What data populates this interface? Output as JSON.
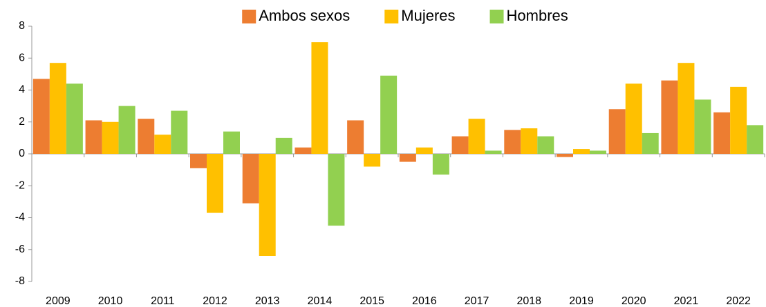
{
  "chart_data": {
    "type": "bar",
    "categories": [
      "2009",
      "2010",
      "2011",
      "2012",
      "2013",
      "2014",
      "2015",
      "2016",
      "2017",
      "2018",
      "2019",
      "2020",
      "2021",
      "2022"
    ],
    "series": [
      {
        "name": "Ambos sexos",
        "color": "#ED7D31",
        "values": [
          4.7,
          2.1,
          2.2,
          -0.9,
          -3.1,
          0.4,
          2.1,
          -0.5,
          1.1,
          1.5,
          -0.2,
          2.8,
          4.6,
          2.6
        ]
      },
      {
        "name": "Mujeres",
        "color": "#FFC000",
        "values": [
          5.7,
          2.0,
          1.2,
          -3.7,
          -6.4,
          7.0,
          -0.8,
          0.4,
          2.2,
          1.6,
          0.3,
          4.4,
          5.7,
          4.2
        ]
      },
      {
        "name": "Hombres",
        "color": "#92D050",
        "values": [
          4.4,
          3.0,
          2.7,
          1.4,
          1.0,
          -4.5,
          4.9,
          -1.3,
          0.2,
          1.1,
          0.2,
          1.3,
          3.4,
          1.8
        ]
      }
    ],
    "ylim": [
      -8,
      8
    ],
    "yticks": [
      -8,
      -6,
      -4,
      -2,
      0,
      2,
      4,
      6,
      8
    ],
    "grid": false,
    "legend": "top"
  }
}
